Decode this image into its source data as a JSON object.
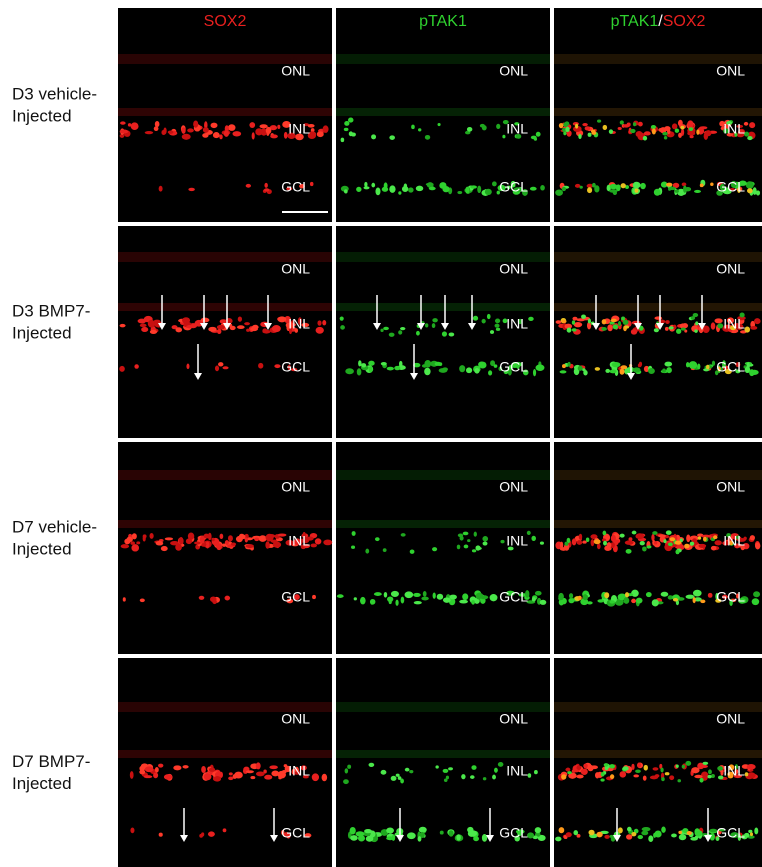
{
  "columns": [
    {
      "parts": [
        {
          "text": "SOX2",
          "color": "#e8201f"
        }
      ]
    },
    {
      "parts": [
        {
          "text": "pTAK1",
          "color": "#2fd12f"
        }
      ]
    },
    {
      "parts": [
        {
          "text": "pTAK1",
          "color": "#2fd12f"
        },
        {
          "text": "/",
          "color": "#ffffff"
        },
        {
          "text": "SOX2",
          "color": "#e8201f"
        }
      ]
    }
  ],
  "rows": [
    {
      "label": [
        "D3 vehicle-",
        "Injected"
      ]
    },
    {
      "label": [
        "D3 BMP7-",
        "Injected"
      ]
    },
    {
      "label": [
        "D7 vehicle-",
        "Injected"
      ]
    },
    {
      "label": [
        "D7 BMP7-",
        "Injected"
      ]
    }
  ],
  "layers": [
    "ONL",
    "INL",
    "GCL"
  ]
}
